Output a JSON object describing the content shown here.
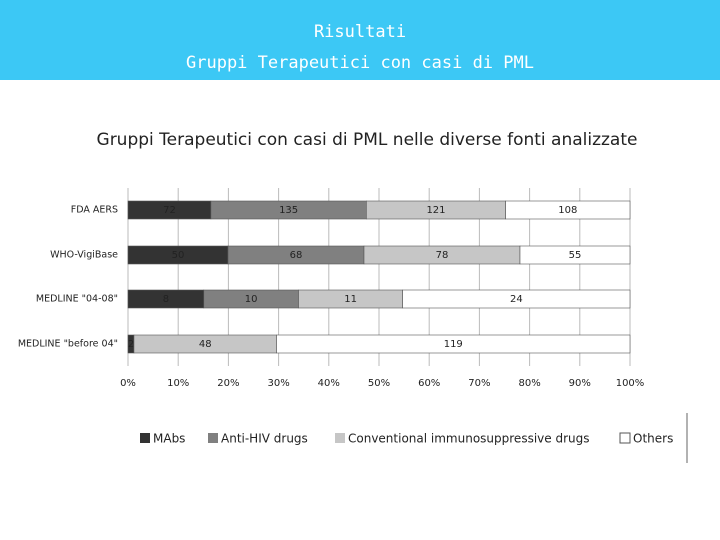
{
  "header": {
    "title": "Risultati",
    "subtitle": "Gruppi Terapeutici con casi di PML"
  },
  "chart_data": {
    "type": "bar100",
    "orientation": "horizontal",
    "title": "Gruppi Terapeutici con casi di PML nelle diverse fonti analizzate",
    "categories": [
      "FDA AERS",
      "WHO-VigiBase",
      "MEDLINE \"04-08\"",
      "MEDLINE \"before 04\""
    ],
    "series": [
      {
        "name": "MAbs",
        "color": "#333333",
        "values": [
          72,
          50,
          8,
          2
        ]
      },
      {
        "name": "Anti-HIV drugs",
        "color": "#808080",
        "values": [
          135,
          68,
          10,
          null
        ]
      },
      {
        "name": "Conventional immunosuppressive drugs",
        "color": "#c6c6c6",
        "values": [
          121,
          78,
          11,
          48
        ]
      },
      {
        "name": "Others",
        "color": "#ffffff",
        "values": [
          108,
          55,
          24,
          119
        ]
      }
    ],
    "xlim": [
      0,
      100
    ],
    "xticks": [
      {
        "value": 0,
        "label": "0%"
      },
      {
        "value": 10,
        "label": "10%"
      },
      {
        "value": 20,
        "label": "20%"
      },
      {
        "value": 30,
        "label": "30%"
      },
      {
        "value": 40,
        "label": "40%"
      },
      {
        "value": 50,
        "label": "50%"
      },
      {
        "value": 60,
        "label": "60%"
      },
      {
        "value": 70,
        "label": "70%"
      },
      {
        "value": 80,
        "label": "80%"
      },
      {
        "value": 90,
        "label": "90%"
      },
      {
        "value": 100,
        "label": "100%"
      }
    ],
    "grid": true,
    "legend": "bottom"
  }
}
